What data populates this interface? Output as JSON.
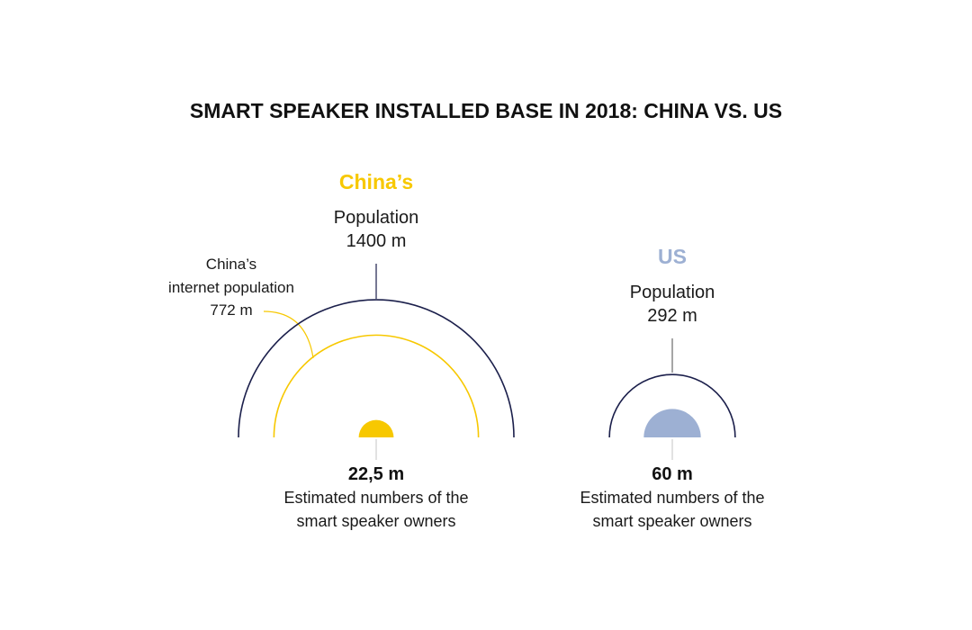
{
  "colors": {
    "navy": "#1b1f4b",
    "yellow": "#f7c800",
    "blue": "#9db0d3",
    "connector": "#6b6b6b"
  },
  "chart_data": {
    "type": "semicircle-comparison",
    "title": "SMART SPEAKER INSTALLED BASE IN 2018: CHINA VS. US",
    "groups": [
      {
        "name": "China’s",
        "population_label": "Population",
        "population_value_text": "1400 m",
        "population": 1400,
        "internet_population_label_lines": [
          "China’s",
          "internet population",
          "772 m"
        ],
        "internet_population": 772,
        "owners_value_text": "22,5 m",
        "owners": 22.5,
        "owners_desc_lines": [
          "Estimated numbers of the",
          "smart speaker owners"
        ]
      },
      {
        "name": "US",
        "population_label": "Population",
        "population_value_text": "292 m",
        "population": 292,
        "owners_value_text": "60 m",
        "owners": 60,
        "owners_desc_lines": [
          "Estimated numbers of the",
          "smart speaker owners"
        ]
      }
    ]
  }
}
